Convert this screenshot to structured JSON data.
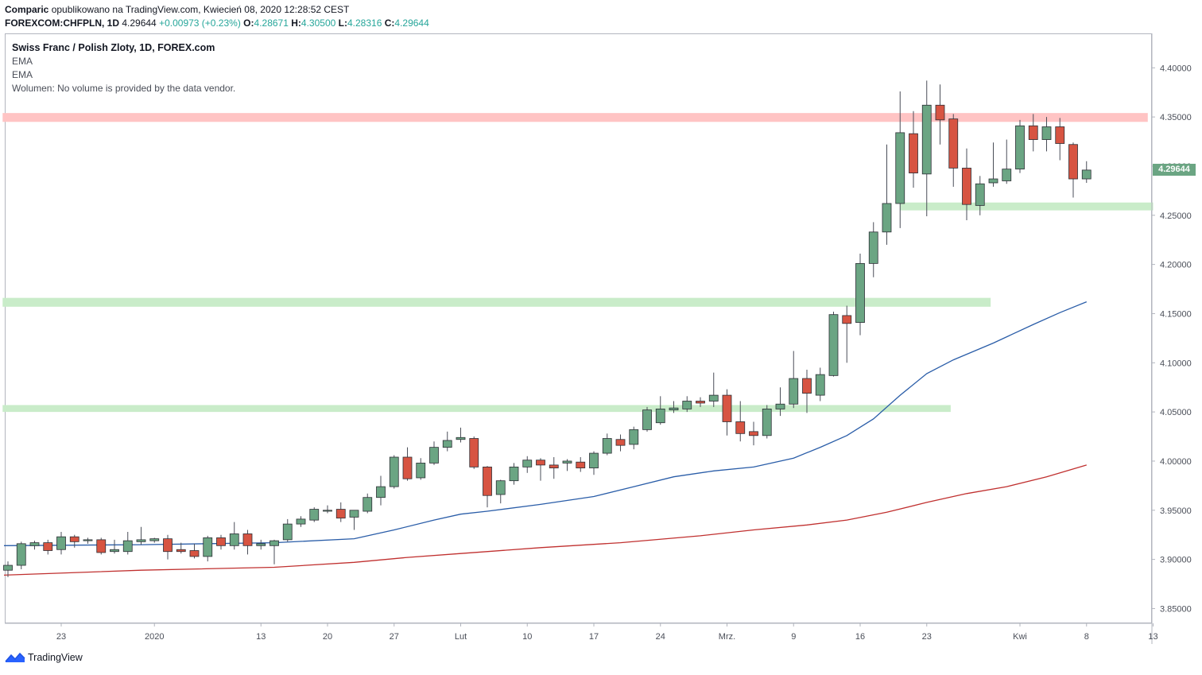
{
  "header": {
    "author": "Comparic",
    "published_text": "opublikowano na TradingView.com, Kwiecień 08, 2020 12:28:52 CEST",
    "symbol": "FOREXCOM:CHFPLN, 1D",
    "last": "4.29644",
    "change": "+0.00973 (+0.23%)",
    "o_label": "O:",
    "o": "4.28671",
    "h_label": "H:",
    "h": "4.30500",
    "l_label": "L:",
    "l": "4.28316",
    "c_label": "C:",
    "c": "4.29644"
  },
  "legend": {
    "title": "Swiss Franc / Polish Zloty, 1D, FOREX.com",
    "ema1": "EMA",
    "ema2": "EMA",
    "volume": "Wolumen: No volume is provided by the data vendor."
  },
  "price_tag": "4.29644",
  "footer": {
    "brand": "TradingView"
  },
  "colors": {
    "up": "#6ba583",
    "down": "#d75442",
    "ema_fast": "#2a5da8",
    "ema_slow": "#c0302f",
    "zone_red": "#ffc4c4",
    "zone_green": "#c9ecc9",
    "axis_text": "#4a4e58"
  },
  "chart_data": {
    "type": "candlestick",
    "title": "Swiss Franc / Polish Zloty, 1D, FOREX.com",
    "ylim": [
      3.835,
      4.435
    ],
    "y_ticks": [
      "4.40000",
      "4.35000",
      "4.30000",
      "4.25000",
      "4.20000",
      "4.15000",
      "4.10000",
      "4.05000",
      "4.00000",
      "3.95000",
      "3.90000",
      "3.85000"
    ],
    "x_ticks": [
      {
        "label": "23",
        "bar": 4
      },
      {
        "label": "2020",
        "bar": 11
      },
      {
        "label": "13",
        "bar": 19
      },
      {
        "label": "20",
        "bar": 24
      },
      {
        "label": "27",
        "bar": 29
      },
      {
        "label": "Lut",
        "bar": 34
      },
      {
        "label": "10",
        "bar": 39
      },
      {
        "label": "17",
        "bar": 44
      },
      {
        "label": "24",
        "bar": 49
      },
      {
        "label": "Mrz.",
        "bar": 54
      },
      {
        "label": "9",
        "bar": 59
      },
      {
        "label": "16",
        "bar": 64
      },
      {
        "label": "23",
        "bar": 69
      },
      {
        "label": "Kwi",
        "bar": 76
      },
      {
        "label": "8",
        "bar": 81
      },
      {
        "label": "13",
        "bar": 86
      }
    ],
    "candles": [
      {
        "o": 3.889,
        "h": 3.898,
        "l": 3.882,
        "c": 3.894
      },
      {
        "o": 3.894,
        "h": 3.918,
        "l": 3.89,
        "c": 3.916
      },
      {
        "o": 3.914,
        "h": 3.919,
        "l": 3.91,
        "c": 3.917
      },
      {
        "o": 3.917,
        "h": 3.92,
        "l": 3.905,
        "c": 3.909
      },
      {
        "o": 3.91,
        "h": 3.928,
        "l": 3.905,
        "c": 3.923
      },
      {
        "o": 3.923,
        "h": 3.925,
        "l": 3.912,
        "c": 3.918
      },
      {
        "o": 3.919,
        "h": 3.922,
        "l": 3.916,
        "c": 3.92
      },
      {
        "o": 3.92,
        "h": 3.922,
        "l": 3.905,
        "c": 3.907
      },
      {
        "o": 3.908,
        "h": 3.92,
        "l": 3.906,
        "c": 3.91
      },
      {
        "o": 3.908,
        "h": 3.928,
        "l": 3.905,
        "c": 3.919
      },
      {
        "o": 3.918,
        "h": 3.933,
        "l": 3.915,
        "c": 3.92
      },
      {
        "o": 3.919,
        "h": 3.922,
        "l": 3.917,
        "c": 3.921
      },
      {
        "o": 3.921,
        "h": 3.925,
        "l": 3.9,
        "c": 3.908
      },
      {
        "o": 3.91,
        "h": 3.917,
        "l": 3.906,
        "c": 3.908
      },
      {
        "o": 3.909,
        "h": 3.916,
        "l": 3.901,
        "c": 3.903
      },
      {
        "o": 3.903,
        "h": 3.924,
        "l": 3.898,
        "c": 3.922
      },
      {
        "o": 3.922,
        "h": 3.925,
        "l": 3.91,
        "c": 3.914
      },
      {
        "o": 3.914,
        "h": 3.938,
        "l": 3.91,
        "c": 3.926
      },
      {
        "o": 3.926,
        "h": 3.93,
        "l": 3.905,
        "c": 3.914
      },
      {
        "o": 3.914,
        "h": 3.92,
        "l": 3.91,
        "c": 3.916
      },
      {
        "o": 3.914,
        "h": 3.92,
        "l": 3.895,
        "c": 3.919
      },
      {
        "o": 3.92,
        "h": 3.941,
        "l": 3.918,
        "c": 3.936
      },
      {
        "o": 3.936,
        "h": 3.944,
        "l": 3.933,
        "c": 3.941
      },
      {
        "o": 3.94,
        "h": 3.953,
        "l": 3.938,
        "c": 3.951
      },
      {
        "o": 3.95,
        "h": 3.955,
        "l": 3.947,
        "c": 3.95
      },
      {
        "o": 3.951,
        "h": 3.958,
        "l": 3.938,
        "c": 3.942
      },
      {
        "o": 3.943,
        "h": 3.95,
        "l": 3.93,
        "c": 3.95
      },
      {
        "o": 3.949,
        "h": 3.967,
        "l": 3.947,
        "c": 3.963
      },
      {
        "o": 3.963,
        "h": 3.985,
        "l": 3.955,
        "c": 3.974
      },
      {
        "o": 3.974,
        "h": 4.006,
        "l": 3.972,
        "c": 4.004
      },
      {
        "o": 4.004,
        "h": 4.014,
        "l": 3.98,
        "c": 3.982
      },
      {
        "o": 3.983,
        "h": 4.003,
        "l": 3.981,
        "c": 3.998
      },
      {
        "o": 3.998,
        "h": 4.02,
        "l": 3.996,
        "c": 4.014
      },
      {
        "o": 4.014,
        "h": 4.03,
        "l": 4.01,
        "c": 4.021
      },
      {
        "o": 4.022,
        "h": 4.034,
        "l": 4.019,
        "c": 4.024
      },
      {
        "o": 4.023,
        "h": 4.025,
        "l": 3.992,
        "c": 3.994
      },
      {
        "o": 3.994,
        "h": 3.995,
        "l": 3.953,
        "c": 3.965
      },
      {
        "o": 3.966,
        "h": 3.981,
        "l": 3.957,
        "c": 3.98
      },
      {
        "o": 3.98,
        "h": 3.998,
        "l": 3.976,
        "c": 3.994
      },
      {
        "o": 3.994,
        "h": 4.005,
        "l": 3.988,
        "c": 4.001
      },
      {
        "o": 4.001,
        "h": 4.003,
        "l": 3.98,
        "c": 3.996
      },
      {
        "o": 3.996,
        "h": 4.004,
        "l": 3.982,
        "c": 3.993
      },
      {
        "o": 3.998,
        "h": 4.002,
        "l": 3.99,
        "c": 4.0
      },
      {
        "o": 3.999,
        "h": 4.004,
        "l": 3.989,
        "c": 3.993
      },
      {
        "o": 3.993,
        "h": 4.01,
        "l": 3.986,
        "c": 4.008
      },
      {
        "o": 4.008,
        "h": 4.028,
        "l": 4.006,
        "c": 4.023
      },
      {
        "o": 4.022,
        "h": 4.027,
        "l": 4.01,
        "c": 4.016
      },
      {
        "o": 4.017,
        "h": 4.035,
        "l": 4.012,
        "c": 4.032
      },
      {
        "o": 4.032,
        "h": 4.055,
        "l": 4.03,
        "c": 4.052
      },
      {
        "o": 4.039,
        "h": 4.066,
        "l": 4.037,
        "c": 4.053
      },
      {
        "o": 4.052,
        "h": 4.061,
        "l": 4.049,
        "c": 4.054
      },
      {
        "o": 4.053,
        "h": 4.066,
        "l": 4.05,
        "c": 4.061
      },
      {
        "o": 4.061,
        "h": 4.065,
        "l": 4.055,
        "c": 4.059
      },
      {
        "o": 4.061,
        "h": 4.09,
        "l": 4.055,
        "c": 4.067
      },
      {
        "o": 4.067,
        "h": 4.073,
        "l": 4.026,
        "c": 4.04
      },
      {
        "o": 4.04,
        "h": 4.061,
        "l": 4.02,
        "c": 4.028
      },
      {
        "o": 4.03,
        "h": 4.04,
        "l": 4.016,
        "c": 4.026
      },
      {
        "o": 4.026,
        "h": 4.057,
        "l": 4.023,
        "c": 4.053
      },
      {
        "o": 4.053,
        "h": 4.075,
        "l": 4.046,
        "c": 4.058
      },
      {
        "o": 4.058,
        "h": 4.112,
        "l": 4.054,
        "c": 4.084
      },
      {
        "o": 4.084,
        "h": 4.093,
        "l": 4.049,
        "c": 4.069
      },
      {
        "o": 4.067,
        "h": 4.095,
        "l": 4.061,
        "c": 4.088
      },
      {
        "o": 4.087,
        "h": 4.152,
        "l": 4.086,
        "c": 4.149
      },
      {
        "o": 4.148,
        "h": 4.158,
        "l": 4.1,
        "c": 4.14
      },
      {
        "o": 4.141,
        "h": 4.211,
        "l": 4.128,
        "c": 4.201
      },
      {
        "o": 4.201,
        "h": 4.243,
        "l": 4.187,
        "c": 4.233
      },
      {
        "o": 4.233,
        "h": 4.322,
        "l": 4.22,
        "c": 4.262
      },
      {
        "o": 4.262,
        "h": 4.376,
        "l": 4.237,
        "c": 4.334
      },
      {
        "o": 4.333,
        "h": 4.356,
        "l": 4.278,
        "c": 4.293
      },
      {
        "o": 4.292,
        "h": 4.387,
        "l": 4.249,
        "c": 4.362
      },
      {
        "o": 4.362,
        "h": 4.383,
        "l": 4.322,
        "c": 4.347
      },
      {
        "o": 4.348,
        "h": 4.353,
        "l": 4.279,
        "c": 4.298
      },
      {
        "o": 4.298,
        "h": 4.318,
        "l": 4.245,
        "c": 4.261
      },
      {
        "o": 4.26,
        "h": 4.29,
        "l": 4.25,
        "c": 4.282
      },
      {
        "o": 4.283,
        "h": 4.324,
        "l": 4.279,
        "c": 4.287
      },
      {
        "o": 4.285,
        "h": 4.327,
        "l": 4.282,
        "c": 4.297
      },
      {
        "o": 4.297,
        "h": 4.347,
        "l": 4.293,
        "c": 4.341
      },
      {
        "o": 4.341,
        "h": 4.353,
        "l": 4.315,
        "c": 4.327
      },
      {
        "o": 4.327,
        "h": 4.35,
        "l": 4.315,
        "c": 4.34
      },
      {
        "o": 4.34,
        "h": 4.349,
        "l": 4.306,
        "c": 4.323
      },
      {
        "o": 4.322,
        "h": 4.324,
        "l": 4.268,
        "c": 4.287
      },
      {
        "o": 4.287,
        "h": 4.305,
        "l": 4.283,
        "c": 4.296
      }
    ],
    "ema_fast": [
      {
        "bar": -0.3,
        "v": 3.914
      },
      {
        "bar": 10,
        "v": 3.915
      },
      {
        "bar": 20,
        "v": 3.917
      },
      {
        "bar": 26,
        "v": 3.921
      },
      {
        "bar": 29,
        "v": 3.93
      },
      {
        "bar": 32,
        "v": 3.94
      },
      {
        "bar": 34,
        "v": 3.946
      },
      {
        "bar": 36,
        "v": 3.949
      },
      {
        "bar": 40,
        "v": 3.956
      },
      {
        "bar": 44,
        "v": 3.964
      },
      {
        "bar": 47,
        "v": 3.974
      },
      {
        "bar": 50,
        "v": 3.984
      },
      {
        "bar": 53,
        "v": 3.99
      },
      {
        "bar": 56,
        "v": 3.994
      },
      {
        "bar": 59,
        "v": 4.003
      },
      {
        "bar": 61,
        "v": 4.014
      },
      {
        "bar": 63,
        "v": 4.026
      },
      {
        "bar": 65,
        "v": 4.043
      },
      {
        "bar": 67,
        "v": 4.067
      },
      {
        "bar": 69,
        "v": 4.089
      },
      {
        "bar": 71,
        "v": 4.103
      },
      {
        "bar": 74,
        "v": 4.12
      },
      {
        "bar": 77,
        "v": 4.139
      },
      {
        "bar": 79,
        "v": 4.151
      },
      {
        "bar": 81,
        "v": 4.162
      }
    ],
    "ema_slow": [
      {
        "bar": -0.3,
        "v": 3.884
      },
      {
        "bar": 10,
        "v": 3.889
      },
      {
        "bar": 20,
        "v": 3.892
      },
      {
        "bar": 26,
        "v": 3.897
      },
      {
        "bar": 30,
        "v": 3.902
      },
      {
        "bar": 34,
        "v": 3.906
      },
      {
        "bar": 40,
        "v": 3.912
      },
      {
        "bar": 46,
        "v": 3.917
      },
      {
        "bar": 52,
        "v": 3.924
      },
      {
        "bar": 56,
        "v": 3.93
      },
      {
        "bar": 60,
        "v": 3.935
      },
      {
        "bar": 63,
        "v": 3.94
      },
      {
        "bar": 66,
        "v": 3.948
      },
      {
        "bar": 69,
        "v": 3.958
      },
      {
        "bar": 72,
        "v": 3.967
      },
      {
        "bar": 75,
        "v": 3.974
      },
      {
        "bar": 78,
        "v": 3.984
      },
      {
        "bar": 81,
        "v": 3.996
      }
    ],
    "zones": [
      {
        "color": "red",
        "y_from": 4.345,
        "y_to": 4.354,
        "bar_from": -0.4,
        "bar_to": 85.6
      },
      {
        "color": "green",
        "y_from": 4.255,
        "y_to": 4.263,
        "bar_from": 67,
        "bar_to": 86
      },
      {
        "color": "green",
        "y_from": 4.157,
        "y_to": 4.166,
        "bar_from": -0.4,
        "bar_to": 73.8
      },
      {
        "color": "green",
        "y_from": 4.05,
        "y_to": 4.057,
        "bar_from": -0.4,
        "bar_to": 70.8
      }
    ]
  }
}
